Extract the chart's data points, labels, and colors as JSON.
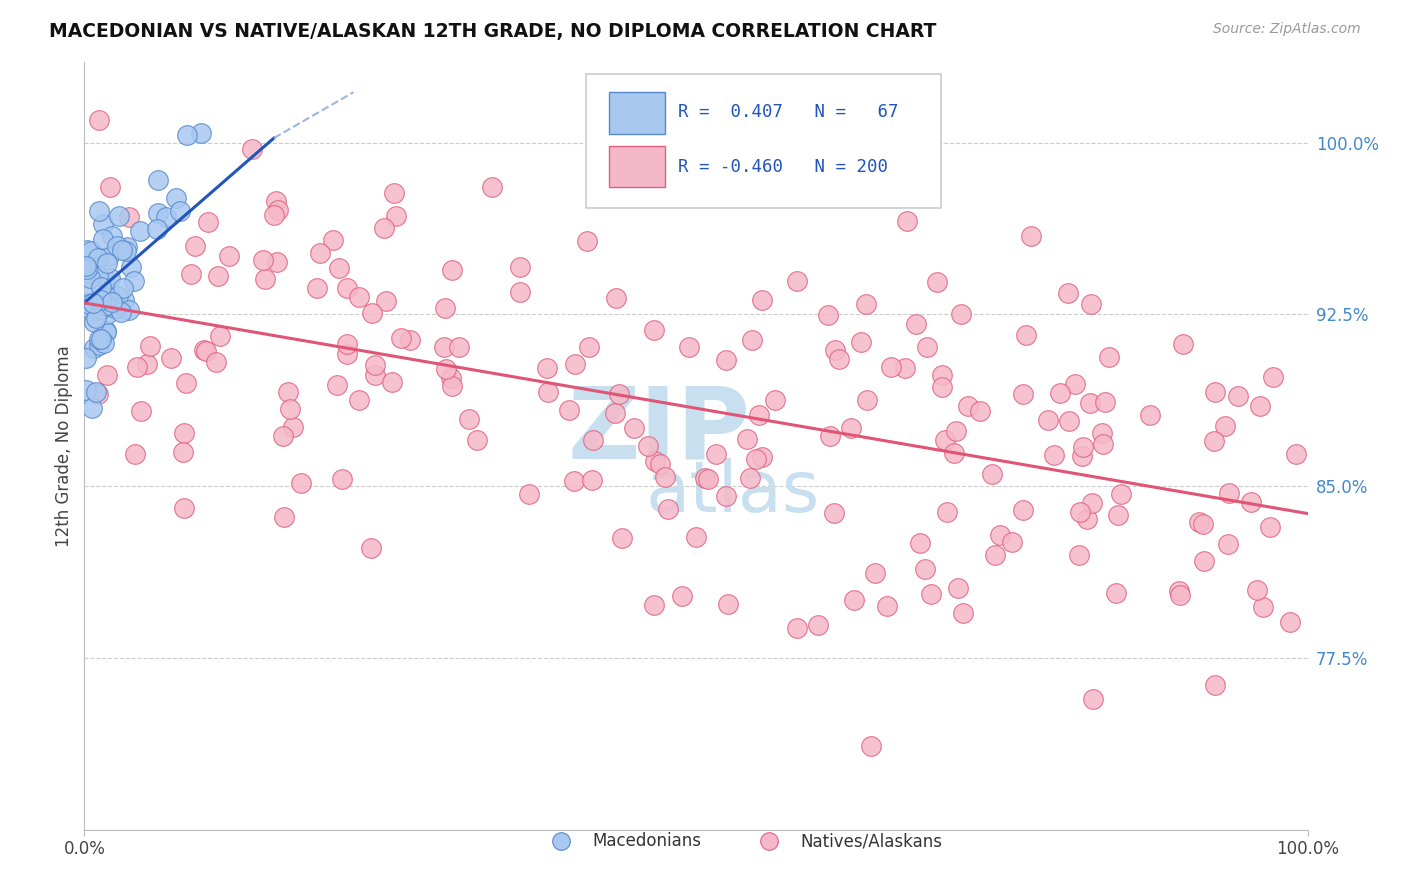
{
  "title": "MACEDONIAN VS NATIVE/ALASKAN 12TH GRADE, NO DIPLOMA CORRELATION CHART",
  "source": "Source: ZipAtlas.com",
  "ylabel": "12th Grade, No Diploma",
  "ytick_labels": [
    "77.5%",
    "85.0%",
    "92.5%",
    "100.0%"
  ],
  "ytick_values": [
    0.775,
    0.85,
    0.925,
    1.0
  ],
  "xlim": [
    0.0,
    1.0
  ],
  "ylim": [
    0.7,
    1.035
  ],
  "macedonian_color": "#a8c8f0",
  "macedonian_edge": "#5588cc",
  "native_color": "#f5b8c8",
  "native_edge": "#e06080",
  "trendline_blue": "#2255bb",
  "trendline_pink": "#e05575",
  "legend_box_color": "#ddddee",
  "watermark_color": "#c8dff0",
  "r1_text": "R =  0.407   N =   67",
  "r2_text": "R = -0.460   N = 200",
  "mac_trend_x": [
    0.0,
    0.155
  ],
  "mac_trend_y": [
    0.93,
    1.002
  ],
  "nat_trend_x": [
    0.0,
    1.0
  ],
  "nat_trend_y": [
    0.93,
    0.838
  ]
}
